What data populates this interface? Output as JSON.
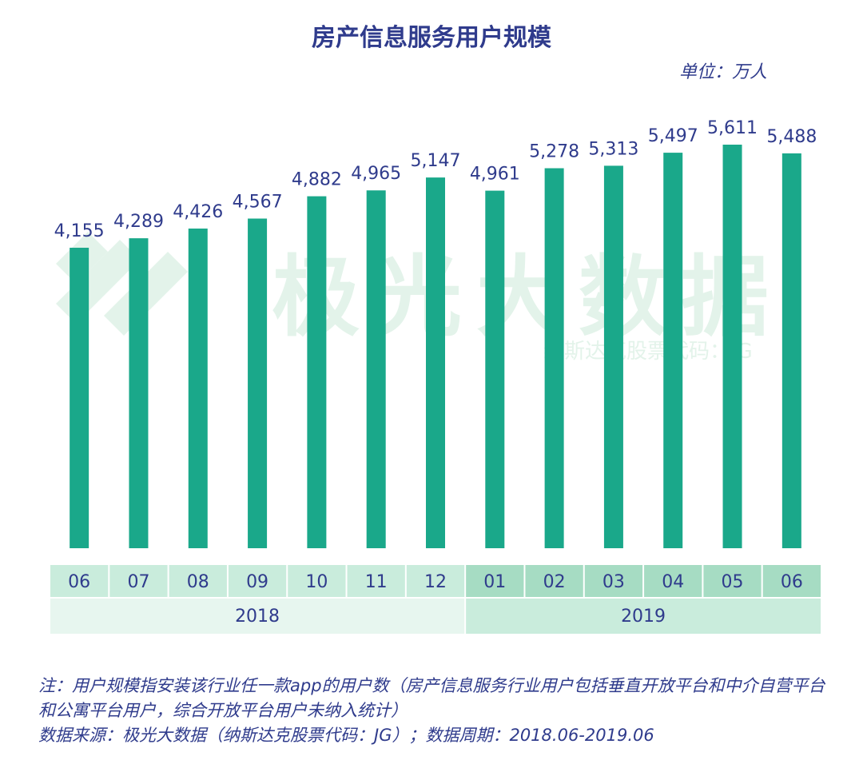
{
  "header": {
    "title": "房产信息服务用户规模",
    "unit": "单位：万人"
  },
  "watermark": {
    "brand": "极光大数据",
    "ticker": "纳斯达克股票代码：JG"
  },
  "footnotes": {
    "note": "注：用户规模指安装该行业任一款app的用户数（房产信息服务行业用户包括垂直开放平台和中介自营平台和公寓平台用户，综合开放平台用户未纳入统计）",
    "source": "数据来源：极光大数据（纳斯达克股票代码：JG）；数据周期：2018.06-2019.06"
  },
  "colors": {
    "bar": "#1aa88a",
    "label": "#2f3b8c",
    "cell_light": "#c9ecdc",
    "cell_mid": "#a6dcc3",
    "year_light": "#e7f6ef",
    "year_mid": "#c9ecdc",
    "watermark": "#e3f3ea"
  },
  "chart_data": {
    "type": "bar",
    "title": "房产信息服务用户规模",
    "unit": "单位：万人",
    "categories": [
      "06",
      "07",
      "08",
      "09",
      "10",
      "11",
      "12",
      "01",
      "02",
      "03",
      "04",
      "05",
      "06"
    ],
    "value_labels": [
      "4,155",
      "4,289",
      "4,426",
      "4,567",
      "4,882",
      "4,965",
      "5,147",
      "4,961",
      "5,278",
      "5,313",
      "5,497",
      "5,611",
      "5,488"
    ],
    "values": [
      4155,
      4289,
      4426,
      4567,
      4882,
      4965,
      5147,
      4961,
      5278,
      5313,
      5497,
      5611,
      5488
    ],
    "groups": [
      {
        "label": "2018",
        "count": 7
      },
      {
        "label": "2019",
        "count": 6
      }
    ]
  }
}
